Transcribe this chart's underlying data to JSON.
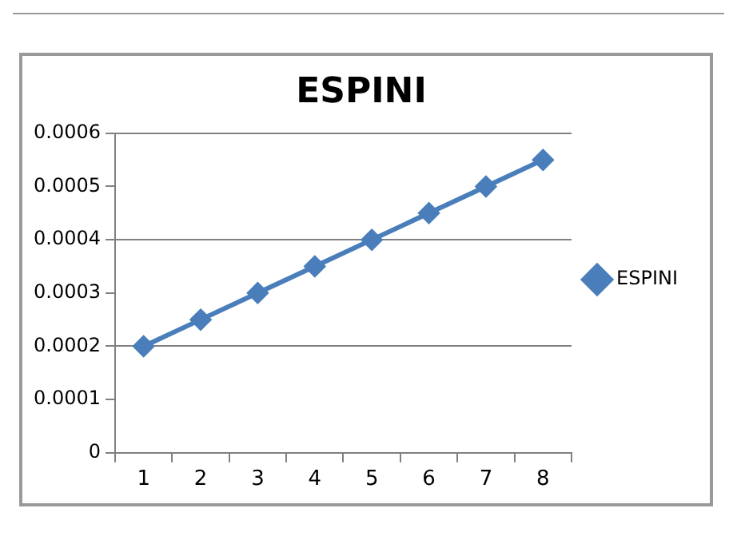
{
  "chart_data": {
    "type": "line",
    "title": "ESPINI",
    "categories": [
      "1",
      "2",
      "3",
      "4",
      "5",
      "6",
      "7",
      "8"
    ],
    "series": [
      {
        "name": "ESPINI",
        "color": "#4a7ebb",
        "values": [
          0.0002,
          0.00025,
          0.0003,
          0.00035,
          0.0004,
          0.00045,
          0.0005,
          0.00055
        ]
      }
    ],
    "ylim": [
      0,
      0.0006
    ],
    "yticks": [
      0,
      0.0001,
      0.0002,
      0.0003,
      0.0004,
      0.0005,
      0.0006
    ],
    "grid": "y",
    "legend": "right",
    "marker": "diamond",
    "line_style": "solid"
  }
}
